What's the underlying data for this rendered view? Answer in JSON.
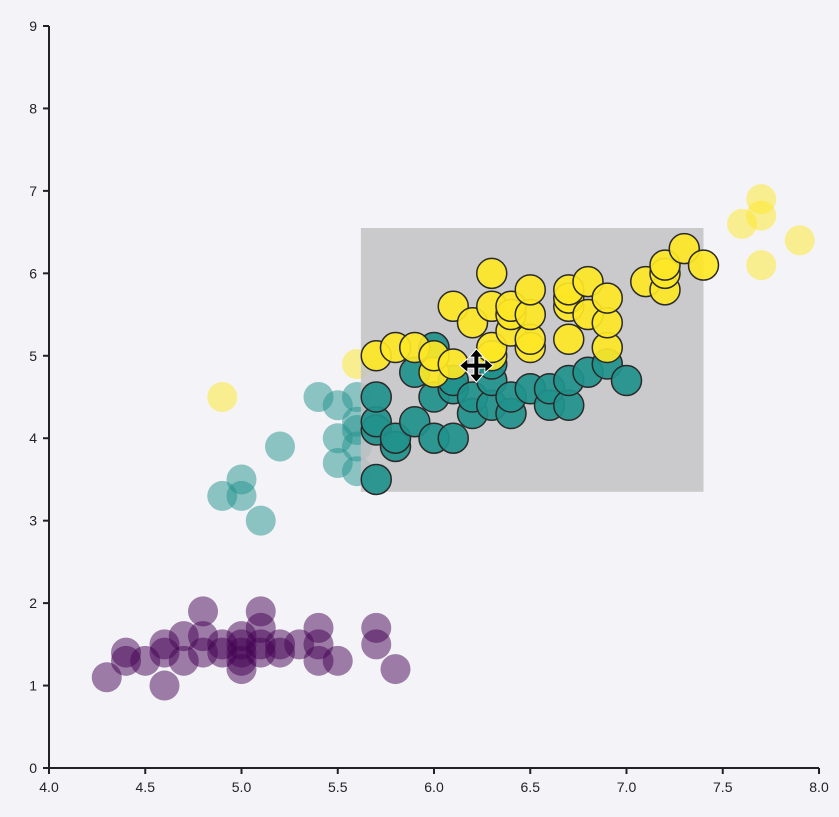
{
  "chart_data": {
    "type": "scatter",
    "title": "",
    "xlabel": "",
    "ylabel": "",
    "xlim": [
      4.0,
      8.0
    ],
    "ylim": [
      0,
      9
    ],
    "x_ticks": [
      "4.0",
      "4.5",
      "5.0",
      "5.5",
      "6.0",
      "6.5",
      "7.0",
      "7.5",
      "8.0"
    ],
    "y_ticks": [
      "0",
      "1",
      "2",
      "3",
      "4",
      "5",
      "6",
      "7",
      "8",
      "9"
    ],
    "grid": false,
    "legend": "none",
    "brush_selection": {
      "x": [
        5.62,
        7.4
      ],
      "y": [
        3.35,
        6.55
      ]
    },
    "series": [
      {
        "color": "#440154",
        "points": [
          [
            4.3,
            1.1
          ],
          [
            4.4,
            1.3
          ],
          [
            4.4,
            1.4
          ],
          [
            4.5,
            1.3
          ],
          [
            4.6,
            1.0
          ],
          [
            4.6,
            1.4
          ],
          [
            4.6,
            1.5
          ],
          [
            4.7,
            1.3
          ],
          [
            4.7,
            1.6
          ],
          [
            4.8,
            1.4
          ],
          [
            4.8,
            1.6
          ],
          [
            4.8,
            1.9
          ],
          [
            4.9,
            1.4
          ],
          [
            4.9,
            1.5
          ],
          [
            5.0,
            1.2
          ],
          [
            5.0,
            1.3
          ],
          [
            5.0,
            1.4
          ],
          [
            5.0,
            1.5
          ],
          [
            5.0,
            1.6
          ],
          [
            5.1,
            1.4
          ],
          [
            5.1,
            1.5
          ],
          [
            5.1,
            1.7
          ],
          [
            5.1,
            1.9
          ],
          [
            5.2,
            1.4
          ],
          [
            5.2,
            1.5
          ],
          [
            5.3,
            1.5
          ],
          [
            5.4,
            1.3
          ],
          [
            5.4,
            1.5
          ],
          [
            5.4,
            1.7
          ],
          [
            5.5,
            1.3
          ],
          [
            5.7,
            1.5
          ],
          [
            5.7,
            1.7
          ],
          [
            5.8,
            1.2
          ]
        ]
      },
      {
        "color": "#21918c",
        "points": [
          [
            4.9,
            3.3
          ],
          [
            5.0,
            3.3
          ],
          [
            5.0,
            3.5
          ],
          [
            5.1,
            3.0
          ],
          [
            5.2,
            3.9
          ],
          [
            5.4,
            4.5
          ],
          [
            5.5,
            3.7
          ],
          [
            5.5,
            4.0
          ],
          [
            5.5,
            4.4
          ],
          [
            5.6,
            3.6
          ],
          [
            5.6,
            3.9
          ],
          [
            5.6,
            4.1
          ],
          [
            5.6,
            4.2
          ],
          [
            5.6,
            4.5
          ],
          [
            5.7,
            3.5
          ],
          [
            5.7,
            4.1
          ],
          [
            5.7,
            4.2
          ],
          [
            5.7,
            4.5
          ],
          [
            5.8,
            3.9
          ],
          [
            5.8,
            4.0
          ],
          [
            5.9,
            4.2
          ],
          [
            5.9,
            4.8
          ],
          [
            6.0,
            4.0
          ],
          [
            6.0,
            4.5
          ],
          [
            6.0,
            5.1
          ],
          [
            6.1,
            4.0
          ],
          [
            6.1,
            4.6
          ],
          [
            6.1,
            4.7
          ],
          [
            6.2,
            4.3
          ],
          [
            6.2,
            4.5
          ],
          [
            6.3,
            4.4
          ],
          [
            6.3,
            4.7
          ],
          [
            6.3,
            4.9
          ],
          [
            6.4,
            4.3
          ],
          [
            6.4,
            4.5
          ],
          [
            6.5,
            4.6
          ],
          [
            6.6,
            4.4
          ],
          [
            6.6,
            4.6
          ],
          [
            6.7,
            4.4
          ],
          [
            6.7,
            4.7
          ],
          [
            6.8,
            4.8
          ],
          [
            6.9,
            4.9
          ],
          [
            7.0,
            4.7
          ]
        ]
      },
      {
        "color": "#fde725",
        "points": [
          [
            4.9,
            4.5
          ],
          [
            5.6,
            4.9
          ],
          [
            5.7,
            5.0
          ],
          [
            5.8,
            5.1
          ],
          [
            5.9,
            5.1
          ],
          [
            6.0,
            4.8
          ],
          [
            6.0,
            5.0
          ],
          [
            6.1,
            4.9
          ],
          [
            6.1,
            5.6
          ],
          [
            6.2,
            5.4
          ],
          [
            6.3,
            5.0
          ],
          [
            6.3,
            5.1
          ],
          [
            6.3,
            5.6
          ],
          [
            6.3,
            6.0
          ],
          [
            6.4,
            5.3
          ],
          [
            6.4,
            5.5
          ],
          [
            6.4,
            5.6
          ],
          [
            6.5,
            5.1
          ],
          [
            6.5,
            5.2
          ],
          [
            6.5,
            5.5
          ],
          [
            6.5,
            5.8
          ],
          [
            6.7,
            5.2
          ],
          [
            6.7,
            5.6
          ],
          [
            6.7,
            5.7
          ],
          [
            6.7,
            5.8
          ],
          [
            6.8,
            5.5
          ],
          [
            6.8,
            5.9
          ],
          [
            6.9,
            5.1
          ],
          [
            6.9,
            5.4
          ],
          [
            6.9,
            5.7
          ],
          [
            7.1,
            5.9
          ],
          [
            7.2,
            5.8
          ],
          [
            7.2,
            6.0
          ],
          [
            7.2,
            6.1
          ],
          [
            7.3,
            6.3
          ],
          [
            7.4,
            6.1
          ],
          [
            7.6,
            6.6
          ],
          [
            7.7,
            6.1
          ],
          [
            7.7,
            6.7
          ],
          [
            7.7,
            6.9
          ],
          [
            7.9,
            6.4
          ]
        ]
      }
    ]
  },
  "colors": {
    "background": "#f4f4f8",
    "axis": "#222222",
    "brush_fill": "#c2c2c4"
  },
  "cursor_icon": "move-cursor-icon"
}
